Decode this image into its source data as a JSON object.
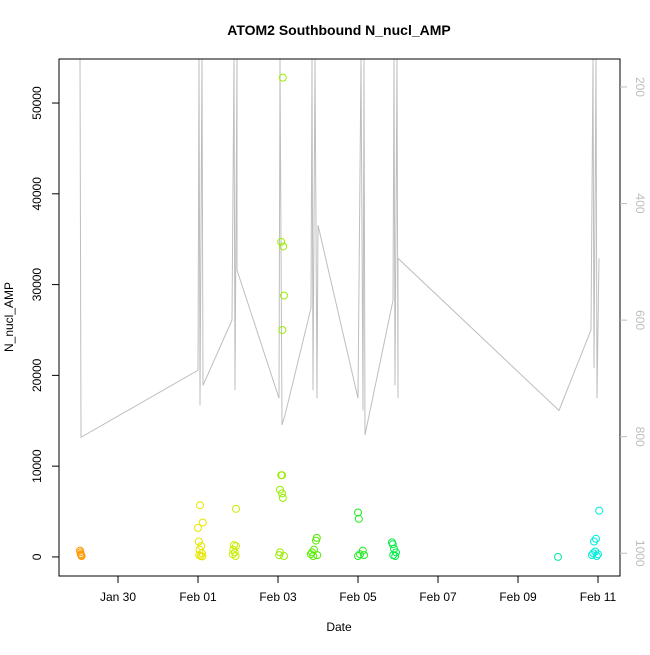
{
  "chart_data": {
    "type": "scatter",
    "title": "ATOM2 Southbound N_nucl_AMP",
    "x_label": "Date",
    "y_label": "N_nucl_AMP",
    "xlim": [
      28.525,
      42.55
    ],
    "xticks": [
      {
        "value": 30,
        "label": "Jan 30"
      },
      {
        "value": 32,
        "label": "Feb 01"
      },
      {
        "value": 34,
        "label": "Feb 03"
      },
      {
        "value": 36,
        "label": "Feb 05"
      },
      {
        "value": 38,
        "label": "Feb 07"
      },
      {
        "value": 40,
        "label": "Feb 09"
      },
      {
        "value": 42,
        "label": "Feb 11"
      }
    ],
    "ylim": [
      -2100,
      54850
    ],
    "yticks": [
      0,
      10000,
      20000,
      30000,
      40000,
      50000
    ],
    "y2lim": [
      1039,
      152
    ],
    "y2ticks": [
      200,
      400,
      600,
      800,
      1000
    ],
    "y2_color": "#bebebe",
    "series": [
      {
        "type": "line",
        "axis": "y2",
        "color": "#bebebe",
        "x": [
          29.05,
          29.075,
          32.0,
          32.025,
          32.05,
          32.1,
          32.125,
          32.85,
          32.9,
          32.925,
          32.975,
          32.975,
          34.025,
          34.05,
          34.1,
          34.175,
          34.825,
          34.85,
          34.875,
          34.925,
          34.975,
          35.0,
          36.0,
          36.075,
          36.125,
          36.15,
          36.175,
          36.875,
          36.9,
          36.925,
          36.975,
          37.0,
          37.0,
          41.025,
          41.825,
          41.875,
          41.9,
          41.95,
          41.975,
          42.025
        ],
        "values": [
          152,
          801,
          686,
          152,
          746,
          152,
          712,
          600,
          152,
          720,
          152,
          514,
          734,
          152,
          780,
          763,
          579,
          152,
          720,
          152,
          734,
          437,
          734,
          152,
          755,
          152,
          797,
          566,
          152,
          712,
          152,
          734,
          494,
          755,
          617,
          152,
          682,
          152,
          734,
          494
        ]
      },
      {
        "color": "#ff9900",
        "x": [
          29.05,
          29.06,
          29.07,
          29.08,
          29.09
        ],
        "values": [
          700,
          500,
          300,
          200,
          100
        ]
      },
      {
        "color": "#e6e600",
        "x": [
          32.05,
          32.12,
          32.0,
          32.02,
          32.08,
          32.04,
          32.1,
          32.03,
          32.07,
          32.11
        ],
        "values": [
          5700,
          3800,
          3200,
          1700,
          1200,
          800,
          400,
          200,
          100,
          50
        ]
      },
      {
        "color": "#c8ee00",
        "x": [
          32.95,
          32.9,
          32.95,
          32.88,
          32.92,
          32.87,
          32.94
        ],
        "values": [
          5300,
          1300,
          1200,
          800,
          500,
          300,
          100
        ]
      },
      {
        "color": "#99ee00",
        "x": [
          34.12,
          34.08,
          34.13,
          34.15,
          34.11,
          34.08,
          34.1,
          34.05,
          34.1,
          34.12,
          34.05,
          34.03,
          34.15
        ],
        "values": [
          52800,
          34700,
          34200,
          28800,
          25000,
          9000,
          9000,
          7400,
          7000,
          6500,
          500,
          200,
          100
        ]
      },
      {
        "color": "#55ee00",
        "x": [
          34.97,
          34.95,
          34.9,
          34.85,
          34.82,
          34.98,
          34.88
        ],
        "values": [
          2100,
          1800,
          800,
          500,
          300,
          200,
          100
        ]
      },
      {
        "color": "#22ee22",
        "x": [
          36.0,
          36.02,
          36.12,
          36.05,
          36.15,
          36.0
        ],
        "values": [
          4900,
          4200,
          700,
          300,
          200,
          100
        ]
      },
      {
        "color": "#00ee44",
        "x": [
          36.85,
          36.87,
          36.9,
          36.95,
          36.88,
          36.93
        ],
        "values": [
          1600,
          1400,
          900,
          500,
          200,
          100
        ]
      },
      {
        "color": "#00ee99",
        "x": [
          41.0
        ],
        "values": [
          0
        ]
      },
      {
        "color": "#00eedd",
        "x": [
          42.03,
          41.95,
          41.9,
          41.93,
          41.88,
          42.0,
          41.85,
          41.97
        ],
        "values": [
          5100,
          2000,
          1700,
          600,
          400,
          300,
          200,
          100
        ]
      }
    ]
  }
}
